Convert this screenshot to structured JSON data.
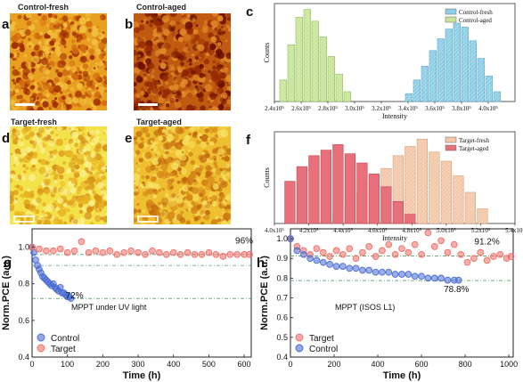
{
  "images": {
    "a": {
      "letter": "a",
      "title": "Control-fresh",
      "palette": [
        "#e8a020",
        "#a02a00",
        "#d26a10",
        "#f2c040"
      ]
    },
    "b": {
      "letter": "b",
      "title": "Control-aged",
      "palette": [
        "#c05a10",
        "#6a1000",
        "#982a04",
        "#e08a28"
      ]
    },
    "d": {
      "letter": "d",
      "title": "Target-fresh",
      "palette": [
        "#f4e24a",
        "#e8b020",
        "#fbf090",
        "#d89018"
      ]
    },
    "e": {
      "letter": "e",
      "title": "Target-aged",
      "palette": [
        "#eec030",
        "#d68818",
        "#f6de60",
        "#c46a10"
      ]
    }
  },
  "chart_data": [
    {
      "panel": "c",
      "type": "bar",
      "subtype": "histogram",
      "xlabel": "Intensity",
      "ylabel": "Counts",
      "xlim": [
        240000,
        420000
      ],
      "xticks": [
        "2.4x10⁵",
        "2.6x10⁵",
        "2.8x10⁵",
        "3.0x10⁵",
        "3.2x10⁵",
        "3.4x10⁵",
        "3.6x10⁵",
        "3.8x10⁵",
        "4.0x10⁵"
      ],
      "xtick_values": [
        240000,
        260000,
        280000,
        300000,
        320000,
        340000,
        360000,
        380000,
        400000
      ],
      "ylim": [
        0,
        100
      ],
      "bin_width": 6000,
      "legend_position": "top-right",
      "series": [
        {
          "name": "Control-fresh",
          "color": "#8ecfe6",
          "bin_starts": [
            338000,
            344000,
            350000,
            356000,
            362000,
            368000,
            374000,
            380000,
            386000,
            392000,
            398000,
            404000
          ],
          "values": [
            8,
            22,
            36,
            52,
            64,
            74,
            80,
            76,
            62,
            44,
            26,
            10
          ]
        },
        {
          "name": "Control-aged",
          "color": "#c9e59a",
          "bin_starts": [
            244000,
            250000,
            256000,
            262000,
            268000,
            274000,
            280000,
            286000,
            292000
          ],
          "values": [
            22,
            58,
            86,
            94,
            82,
            66,
            46,
            28,
            10
          ]
        }
      ]
    },
    {
      "panel": "f",
      "type": "bar",
      "subtype": "histogram",
      "xlabel": "Intensity",
      "ylabel": "Counts",
      "xlim": [
        400000,
        540000
      ],
      "xticks": [
        "4.0x10⁵",
        "4.2x10⁵",
        "4.4x10⁵",
        "4.6x10⁵",
        "4.8x10⁵",
        "5.0x10⁵",
        "5.2x10⁵",
        "5.4x10⁵"
      ],
      "xtick_values": [
        400000,
        420000,
        440000,
        460000,
        480000,
        500000,
        520000,
        540000
      ],
      "ylim": [
        0,
        100
      ],
      "bin_width": 7000,
      "legend_position": "top-right",
      "series": [
        {
          "name": "Target-fresh",
          "color": "#f2c8a8",
          "bin_starts": [
            434000,
            441000,
            448000,
            455000,
            462000,
            469000,
            476000,
            483000,
            490000,
            497000,
            504000,
            511000,
            518000
          ],
          "values": [
            8,
            20,
            34,
            46,
            60,
            74,
            84,
            92,
            78,
            68,
            52,
            34,
            16
          ]
        },
        {
          "name": "Target-aged",
          "color": "#e8707a",
          "bin_starts": [
            406000,
            413000,
            420000,
            427000,
            434000,
            441000,
            448000,
            455000,
            462000,
            469000,
            476000
          ],
          "values": [
            46,
            62,
            74,
            80,
            86,
            76,
            66,
            54,
            40,
            24,
            10
          ]
        }
      ]
    },
    {
      "panel": "g",
      "type": "scatter",
      "xlabel": "Time (h)",
      "ylabel": "Norm.PCE (a.u.)",
      "xlim": [
        0,
        620
      ],
      "ylim": [
        0.4,
        1.1
      ],
      "xticks": [
        "0",
        "100",
        "200",
        "300",
        "400",
        "500",
        "600"
      ],
      "xtick_values": [
        0,
        100,
        200,
        300,
        400,
        500,
        600
      ],
      "yticks": [
        "0.4",
        "0.6",
        "0.8",
        "1.0"
      ],
      "ytick_values": [
        0.4,
        0.6,
        0.8,
        1.0
      ],
      "reference_lines": [
        0.96,
        0.9,
        0.72
      ],
      "annotations": [
        {
          "text": "96%",
          "x": 600,
          "y": 1.02
        },
        {
          "text": "72%",
          "x": 120,
          "y": 0.72
        }
      ],
      "note": "MPPT under UV light",
      "legend_position": "bottom-left",
      "series": [
        {
          "name": "Control",
          "color": "#4a6cd4",
          "x": [
            0,
            5,
            10,
            15,
            20,
            25,
            30,
            35,
            40,
            45,
            50,
            55,
            60,
            65,
            70,
            75,
            80,
            85,
            90,
            95,
            100,
            105,
            110
          ],
          "y": [
            1.0,
            0.97,
            0.93,
            0.9,
            0.88,
            0.86,
            0.84,
            0.83,
            0.82,
            0.81,
            0.8,
            0.79,
            0.8,
            0.78,
            0.77,
            0.76,
            0.78,
            0.75,
            0.75,
            0.74,
            0.73,
            0.73,
            0.72
          ]
        },
        {
          "name": "Target",
          "color": "#f06e66",
          "x": [
            0,
            20,
            40,
            60,
            80,
            100,
            120,
            140,
            160,
            180,
            200,
            220,
            240,
            260,
            280,
            300,
            320,
            340,
            360,
            380,
            400,
            420,
            440,
            460,
            480,
            500,
            520,
            540,
            560,
            580,
            600,
            615
          ],
          "y": [
            1.0,
            0.99,
            0.98,
            0.98,
            0.99,
            0.97,
            0.98,
            1.03,
            0.97,
            0.98,
            0.97,
            0.98,
            0.96,
            0.97,
            0.98,
            0.97,
            0.96,
            0.98,
            0.97,
            0.96,
            0.97,
            0.96,
            0.97,
            0.96,
            0.96,
            0.97,
            0.96,
            0.95,
            0.96,
            0.96,
            0.96,
            0.96
          ]
        }
      ]
    },
    {
      "panel": "h",
      "type": "scatter",
      "xlabel": "Time (h)",
      "ylabel": "Norm.PCE (a.u.)",
      "xlim": [
        0,
        1020
      ],
      "ylim": [
        0.4,
        1.05
      ],
      "xticks": [
        "0",
        "200",
        "400",
        "600",
        "800",
        "1000"
      ],
      "xtick_values": [
        0,
        200,
        400,
        600,
        800,
        1000
      ],
      "yticks": [
        "0.4",
        "0.5",
        "0.6",
        "0.7",
        "0.8",
        "0.9",
        "1.0"
      ],
      "ytick_values": [
        0.4,
        0.5,
        0.6,
        0.7,
        0.8,
        0.9,
        1.0
      ],
      "reference_lines": [
        0.912,
        0.788
      ],
      "annotations": [
        {
          "text": "91.2%",
          "x": 900,
          "y": 0.97
        },
        {
          "text": "78.8%",
          "x": 760,
          "y": 0.73
        }
      ],
      "note": "MPPT (ISOS L1)",
      "legend_position": "bottom-left",
      "series": [
        {
          "name": "Target",
          "color": "#f06e66",
          "x": [
            0,
            30,
            60,
            90,
            120,
            150,
            180,
            210,
            240,
            270,
            300,
            330,
            360,
            390,
            420,
            450,
            480,
            510,
            540,
            570,
            600,
            630,
            660,
            690,
            720,
            750,
            780,
            810,
            840,
            870,
            900,
            930,
            960,
            990,
            1010
          ],
          "y": [
            1.0,
            0.96,
            0.94,
            0.92,
            0.95,
            0.93,
            0.91,
            0.94,
            0.92,
            0.95,
            0.9,
            0.93,
            0.96,
            0.91,
            0.94,
            0.97,
            0.92,
            0.95,
            0.93,
            0.97,
            0.92,
            1.03,
            0.96,
            0.99,
            0.93,
            0.97,
            0.92,
            0.88,
            0.9,
            0.93,
            0.89,
            0.91,
            0.92,
            0.9,
            0.91
          ]
        },
        {
          "name": "Control",
          "color": "#4a6cd4",
          "x": [
            0,
            30,
            60,
            90,
            120,
            150,
            180,
            210,
            240,
            270,
            300,
            330,
            360,
            390,
            420,
            450,
            480,
            510,
            540,
            570,
            600,
            630,
            660,
            690,
            720,
            750,
            770
          ],
          "y": [
            1.0,
            0.94,
            0.92,
            0.9,
            0.89,
            0.88,
            0.87,
            0.86,
            0.86,
            0.85,
            0.85,
            0.84,
            0.84,
            0.83,
            0.83,
            0.83,
            0.82,
            0.82,
            0.82,
            0.81,
            0.81,
            0.8,
            0.8,
            0.8,
            0.79,
            0.79,
            0.79
          ]
        }
      ]
    }
  ]
}
